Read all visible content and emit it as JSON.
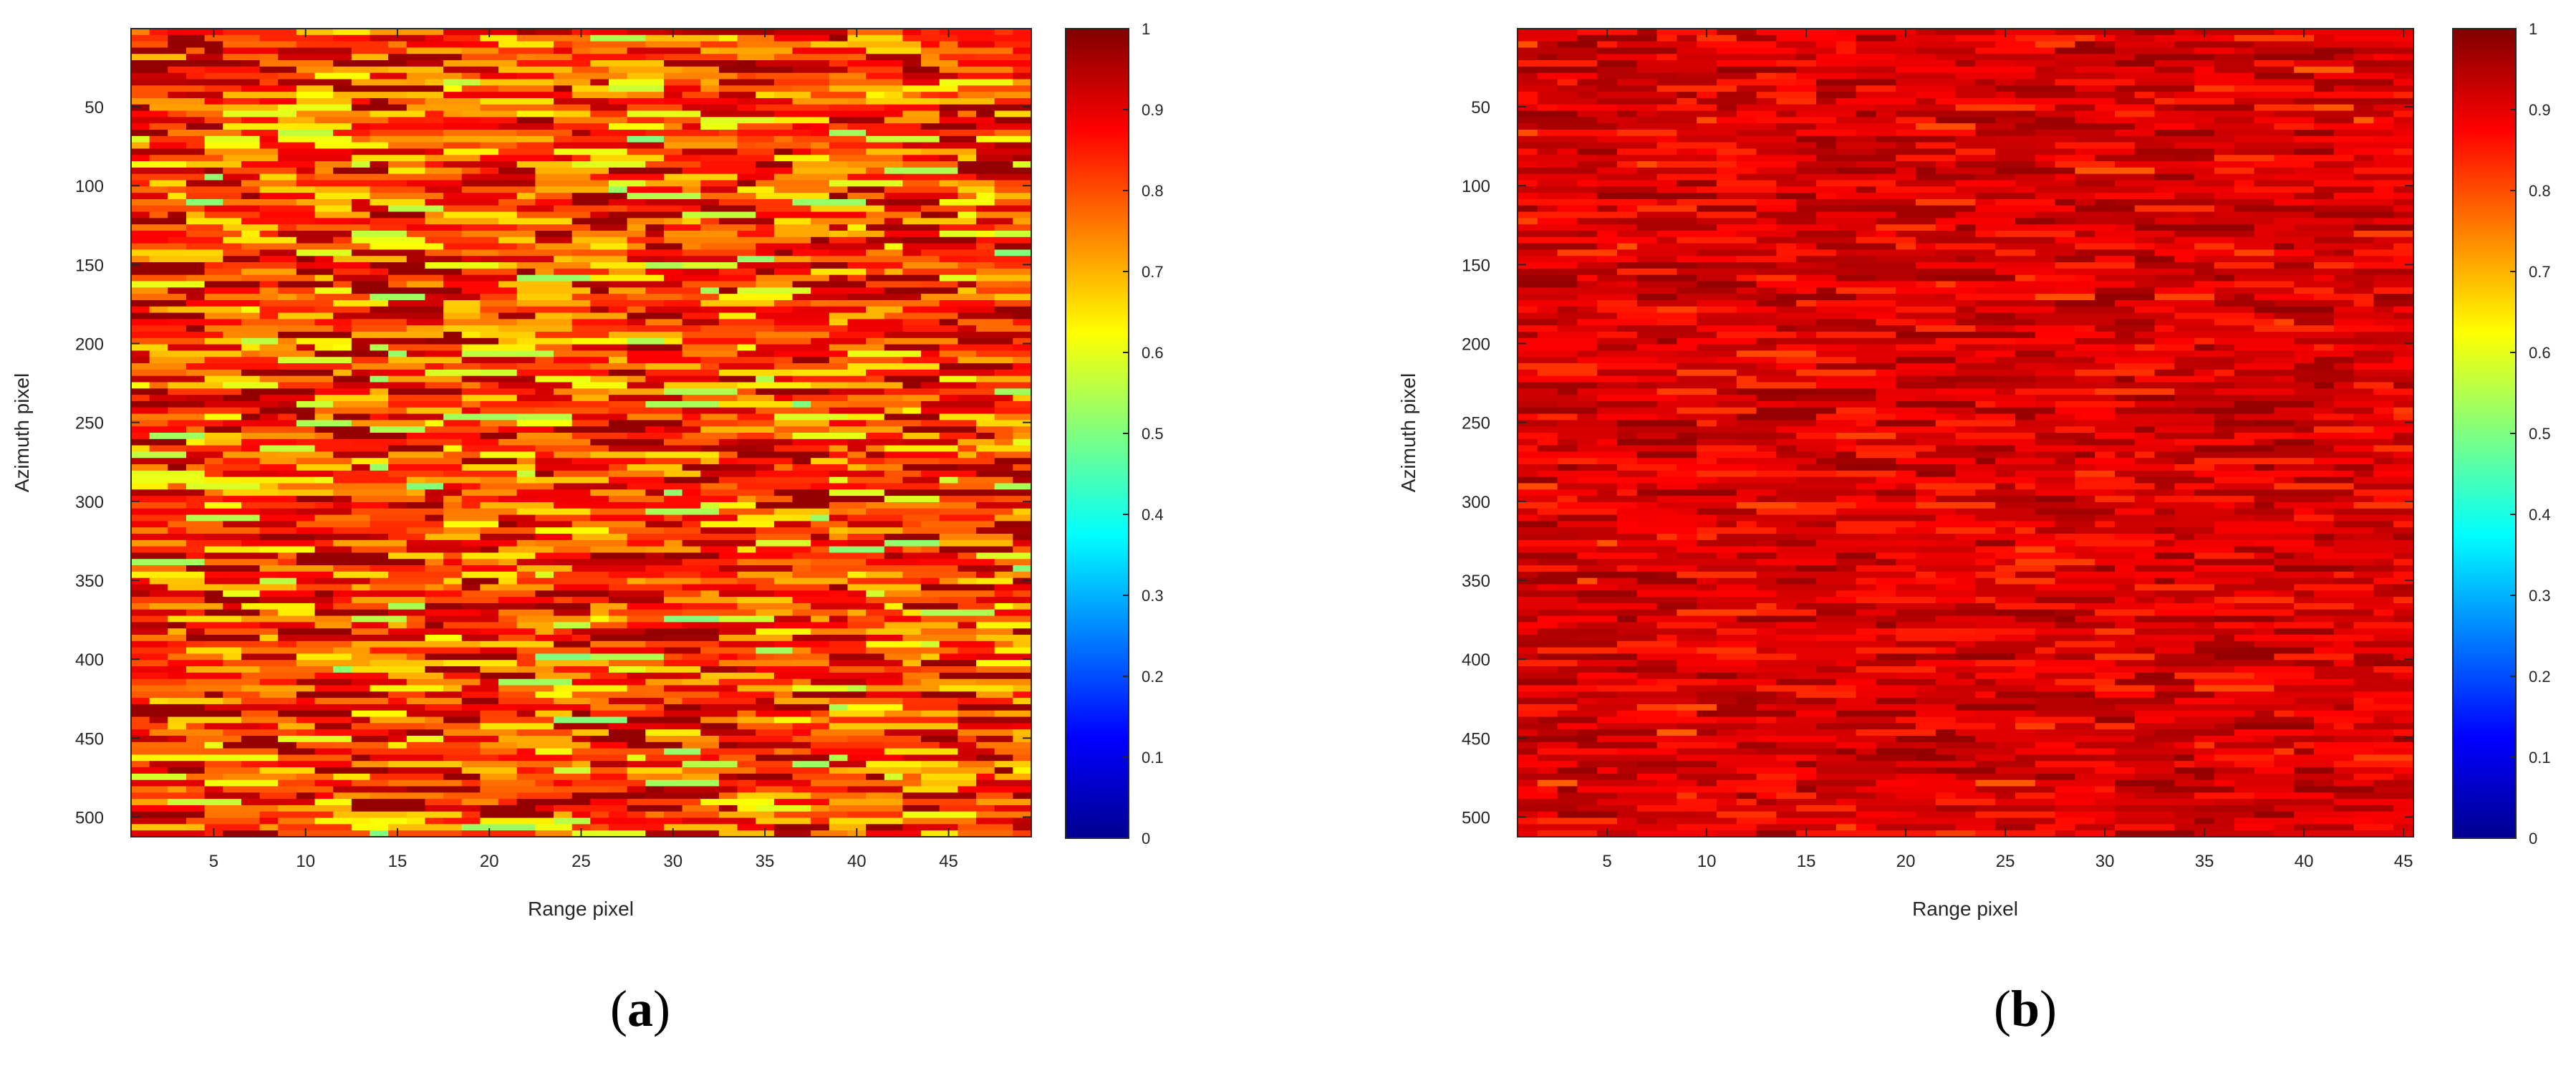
{
  "chart_data": [
    {
      "type": "heatmap",
      "panel_label": "a",
      "xlabel": "Range pixel",
      "ylabel": "Azimuth pixel",
      "xlim": [
        0.5,
        49.5
      ],
      "ylim": [
        512.5,
        0.5
      ],
      "xticks": [
        5,
        10,
        15,
        20,
        25,
        30,
        35,
        40,
        45
      ],
      "yticks": [
        50,
        100,
        150,
        200,
        250,
        300,
        350,
        400,
        450,
        500
      ],
      "grid_size": {
        "columns": 49,
        "rows": 512
      },
      "value_range": [
        0,
        1
      ],
      "value_distribution": {
        "typical_min": 0.55,
        "typical_max": 0.98,
        "mean": 0.82
      },
      "colormap": "jet",
      "colorbar": {
        "range": [
          0,
          1
        ],
        "ticks": [
          0,
          0.1,
          0.2,
          0.3,
          0.4,
          0.5,
          0.6,
          0.7,
          0.8,
          0.9,
          1
        ]
      },
      "colormap_stops": [
        "#00008f",
        "#0000ff",
        "#00ffff",
        "#ffff00",
        "#ff0000",
        "#800000"
      ]
    },
    {
      "type": "heatmap",
      "panel_label": "b",
      "xlabel": "Range pixel",
      "ylabel": "Azimuth pixel",
      "xlim": [
        0.5,
        45.5
      ],
      "ylim": [
        512.5,
        0.5
      ],
      "xticks": [
        5,
        10,
        15,
        20,
        25,
        30,
        35,
        40,
        45
      ],
      "yticks": [
        50,
        100,
        150,
        200,
        250,
        300,
        350,
        400,
        450,
        500
      ],
      "grid_size": {
        "columns": 45,
        "rows": 512
      },
      "value_range": [
        0,
        1
      ],
      "value_distribution": {
        "typical_min": 0.83,
        "typical_max": 0.98,
        "mean": 0.91
      },
      "colormap": "jet",
      "colorbar": {
        "range": [
          0,
          1
        ],
        "ticks": [
          0,
          0.1,
          0.2,
          0.3,
          0.4,
          0.5,
          0.6,
          0.7,
          0.8,
          0.9,
          1
        ]
      },
      "colormap_stops": [
        "#00008f",
        "#0000ff",
        "#00ffff",
        "#ffff00",
        "#ff0000",
        "#800000"
      ]
    }
  ]
}
